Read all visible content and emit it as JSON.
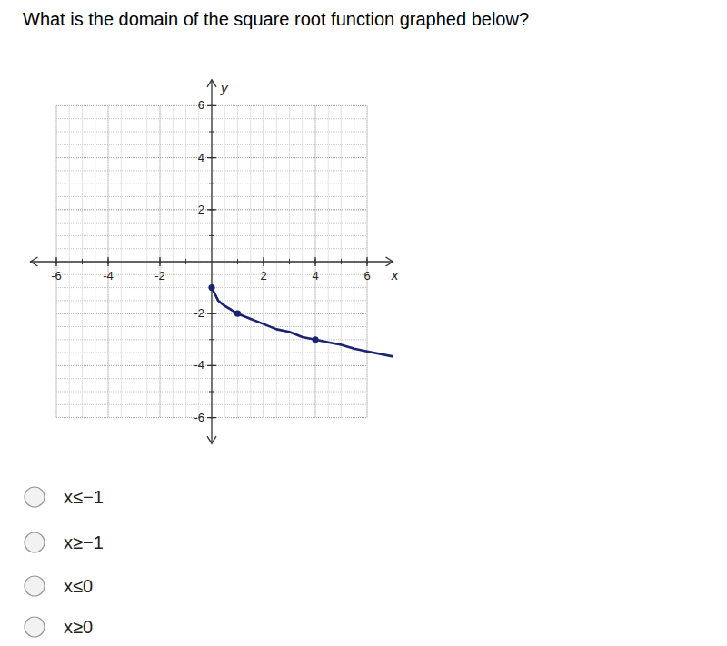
{
  "question": "What is the domain of the square root function graphed below?",
  "options": [
    "x≤−1",
    "x≥−1",
    "x≤0",
    "x≥0"
  ],
  "chart_data": {
    "type": "line",
    "xlabel": "x",
    "ylabel": "y",
    "xlim": [
      -7,
      7
    ],
    "ylim": [
      -7,
      7
    ],
    "xticks": [
      -6,
      -4,
      -2,
      2,
      4,
      6
    ],
    "yticks": [
      -6,
      -4,
      -2,
      2,
      4,
      6
    ],
    "grid": true,
    "series": [
      {
        "x": [
          0,
          0.25,
          0.5,
          1,
          1.5,
          2,
          2.5,
          3,
          3.5,
          4,
          4.5,
          5,
          5.5,
          6,
          7
        ],
        "values": [
          -1,
          -1.5,
          -1.7,
          -2,
          -2.2,
          -2.4,
          -2.6,
          -2.7,
          -2.9,
          -3,
          -3.1,
          -3.2,
          -3.35,
          -3.45,
          -3.65
        ],
        "color": "#1c2372",
        "marker": "none"
      },
      {
        "type": "scatter",
        "x": [
          0,
          1,
          4
        ],
        "values": [
          -1,
          -2,
          -3
        ],
        "color": "#1c2372",
        "marker": "circle"
      }
    ]
  }
}
